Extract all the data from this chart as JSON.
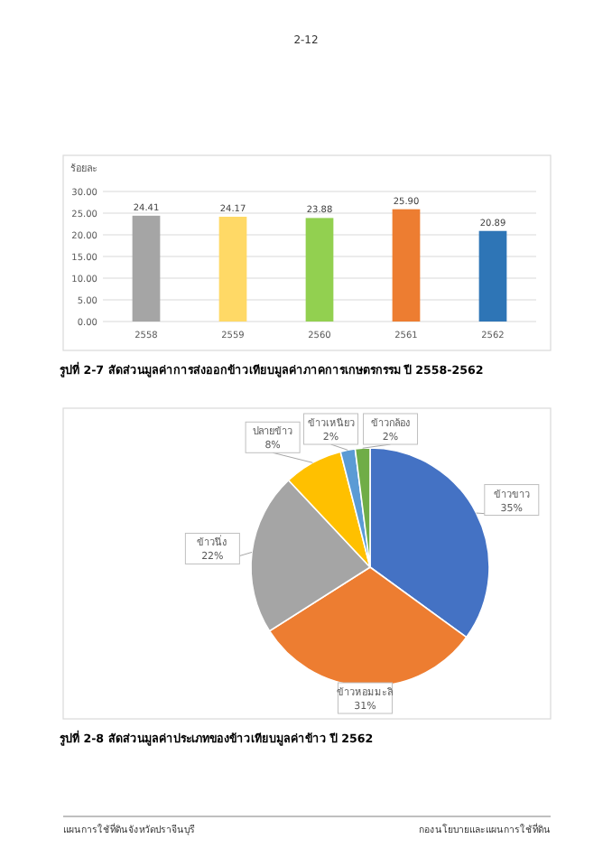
{
  "chart_data": [
    {
      "type": "bar",
      "title": "รูปที่ 2-7 สัดส่วนมูลค่าการส่งออกข้าวเทียบมูลค่าภาคการเกษตรกรรม ปี 2558-2562",
      "ylabel": "ร้อยละ",
      "annotations": [
        "2-12"
      ],
      "categories": [
        "2558",
        "2559",
        "2560",
        "2561",
        "2562"
      ],
      "values": [
        24.41,
        24.17,
        23.88,
        25.9,
        20.89
      ],
      "value_labels": [
        "24.41",
        "24.17",
        "23.88",
        "25.90",
        "20.89"
      ],
      "colors": [
        "#a5a5a5",
        "#ffd966",
        "#92d050",
        "#ed7d31",
        "#2e75b6"
      ],
      "ylim": [
        0,
        30
      ],
      "yticks": [
        {
          "value": 0,
          "label": "0.00"
        },
        {
          "value": 5,
          "label": "5.00"
        },
        {
          "value": 10,
          "label": "10.00"
        },
        {
          "value": 15,
          "label": "15.00"
        },
        {
          "value": 20,
          "label": "20.00"
        },
        {
          "value": 25,
          "label": "25.00"
        },
        {
          "value": 30,
          "label": "30.00"
        }
      ],
      "grid": "y"
    },
    {
      "type": "pie",
      "title": "รูปที่ 2-8 สัดส่วนมูลค่าประเภทของข้าวเทียบมูลค่าข้าว ปี 2562",
      "annotations": [
        "แผนการใช้ที่ดินจังหวัดปราจีนบุรี",
        "กองนโยบายและแผนการใช้ที่ดิน"
      ],
      "categories": [
        "ข้าวขาว",
        "ข้าวหอมมะลิ",
        "ข้าวนึ่ง",
        "ปลายข้าว",
        "ข้าวเหนียว",
        "ข้าวกล้อง"
      ],
      "values": [
        35,
        31,
        22,
        8,
        2,
        2
      ],
      "value_labels": [
        "35%",
        "31%",
        "22%",
        "8%",
        "2%",
        "2%"
      ],
      "colors": [
        "#4472c4",
        "#ed7d31",
        "#a5a5a5",
        "#ffc000",
        "#5b9bd5",
        "#70ad47"
      ]
    }
  ]
}
